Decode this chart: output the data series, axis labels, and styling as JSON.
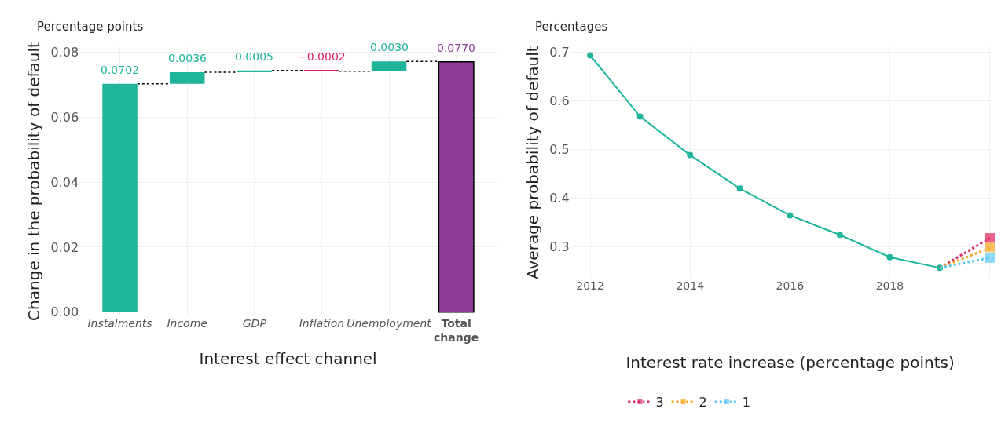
{
  "chart_data": [
    {
      "type": "bar",
      "title": "Percentage points",
      "xlabel": "Interest effect channel",
      "ylabel": "Change in the probability of default",
      "categories": [
        "Instalments",
        "Income",
        "GDP",
        "Inflation",
        "Unemployment",
        "Total change"
      ],
      "values": [
        0.0702,
        0.0036,
        0.0005,
        -0.0002,
        0.003,
        0.077
      ],
      "base": [
        0,
        0.0702,
        0.0738,
        0.0743,
        0.0741,
        0
      ],
      "colors": [
        "#1fb59b",
        "#1fb59b",
        "#1fb59b",
        "#e0245e",
        "#1fb59b",
        "#8b3d96"
      ],
      "value_labels": [
        "0.0702",
        "0.0036",
        "0.0005",
        "−0.0002",
        "0.0030",
        "0.0770"
      ],
      "ylim": [
        -0.001,
        0.0815
      ],
      "yticks": [
        {
          "value": 0,
          "label": "0.00"
        },
        {
          "value": 0.02,
          "label": "0.02"
        },
        {
          "value": 0.04,
          "label": "0.04"
        },
        {
          "value": 0.06,
          "label": "0.06"
        },
        {
          "value": 0.08,
          "label": "0.08"
        }
      ],
      "grid": true,
      "legend": false
    },
    {
      "type": "line",
      "title": "Percentages",
      "ylabel": "Average probability of default",
      "legend_title": "Interest rate increase (percentage points)",
      "series": [
        {
          "color": "#1fb59b",
          "marker": "circle",
          "line_style": "solid",
          "x": [
            2012,
            2013,
            2014,
            2015,
            2016,
            2017,
            2018,
            2019
          ],
          "values": [
            0.693,
            0.567,
            0.488,
            0.419,
            0.364,
            0.324,
            0.278,
            0.256
          ]
        },
        {
          "name": "3",
          "color": "#e0245e",
          "marker": "square",
          "line_style": "dotted",
          "x": [
            2019,
            2020
          ],
          "values": [
            0.256,
            0.317
          ]
        },
        {
          "name": "2",
          "color": "#f5a623",
          "marker": "square",
          "line_style": "dotted",
          "x": [
            2019,
            2020
          ],
          "values": [
            0.256,
            0.297
          ]
        },
        {
          "name": "1",
          "color": "#5bc8f5",
          "marker": "square",
          "line_style": "dotted",
          "x": [
            2019,
            2020
          ],
          "values": [
            0.256,
            0.277
          ]
        }
      ],
      "xlim": [
        2011.6,
        2020.05
      ],
      "xticks": [
        2012,
        2014,
        2016,
        2018,
        {
          "value": 2020,
          "label": null
        }
      ],
      "ylim": [
        0.235,
        0.71
      ],
      "yticks": [
        0.3,
        0.4,
        0.5,
        0.6,
        0.7
      ],
      "grid": true,
      "legend": "bottom"
    }
  ]
}
